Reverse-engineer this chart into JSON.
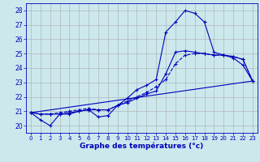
{
  "title": "Graphe des températures (°c)",
  "bg_color": "#cce8ed",
  "grid_color": "#aaaaaa",
  "line_color": "#0000bb",
  "xlim": [
    -0.5,
    23.5
  ],
  "ylim": [
    19.5,
    28.5
  ],
  "xticks": [
    0,
    1,
    2,
    3,
    4,
    5,
    6,
    7,
    8,
    9,
    10,
    11,
    12,
    13,
    14,
    15,
    16,
    17,
    18,
    19,
    20,
    21,
    22,
    23
  ],
  "yticks": [
    20,
    21,
    22,
    23,
    24,
    25,
    26,
    27,
    28
  ],
  "line1_x": [
    0,
    1,
    2,
    3,
    4,
    5,
    6,
    7,
    8,
    9,
    10,
    11,
    12,
    13,
    14,
    15,
    16,
    17,
    18,
    19,
    20,
    21,
    22,
    23
  ],
  "line1_y": [
    20.9,
    20.4,
    20.0,
    20.8,
    20.8,
    21.0,
    21.1,
    20.6,
    20.7,
    21.4,
    21.9,
    22.5,
    22.8,
    23.2,
    26.5,
    27.2,
    28.0,
    27.8,
    27.2,
    25.1,
    24.9,
    24.7,
    24.2,
    23.1
  ],
  "line2_x": [
    0,
    1,
    2,
    3,
    4,
    5,
    6,
    7,
    8,
    9,
    10,
    11,
    12,
    13,
    14,
    15,
    16,
    17,
    18,
    19,
    20,
    21,
    22,
    23
  ],
  "line2_y": [
    20.9,
    20.8,
    20.8,
    20.9,
    21.0,
    21.1,
    21.2,
    21.1,
    21.1,
    21.4,
    21.7,
    22.0,
    22.3,
    22.7,
    23.2,
    24.3,
    24.9,
    25.0,
    25.0,
    24.9,
    24.9,
    24.8,
    24.6,
    23.1
  ],
  "line3_x": [
    0,
    1,
    2,
    3,
    4,
    5,
    6,
    7,
    8,
    9,
    10,
    11,
    12,
    13,
    14,
    15,
    16,
    17,
    18,
    19,
    20,
    21,
    22,
    23
  ],
  "line3_y": [
    20.9,
    20.8,
    20.8,
    20.8,
    20.9,
    21.0,
    21.1,
    21.1,
    21.1,
    21.4,
    21.6,
    21.9,
    22.2,
    22.4,
    23.6,
    25.1,
    25.2,
    25.1,
    25.0,
    24.9,
    24.9,
    24.8,
    24.6,
    23.1
  ],
  "line4_x": [
    0,
    23
  ],
  "line4_y": [
    20.9,
    23.1
  ]
}
